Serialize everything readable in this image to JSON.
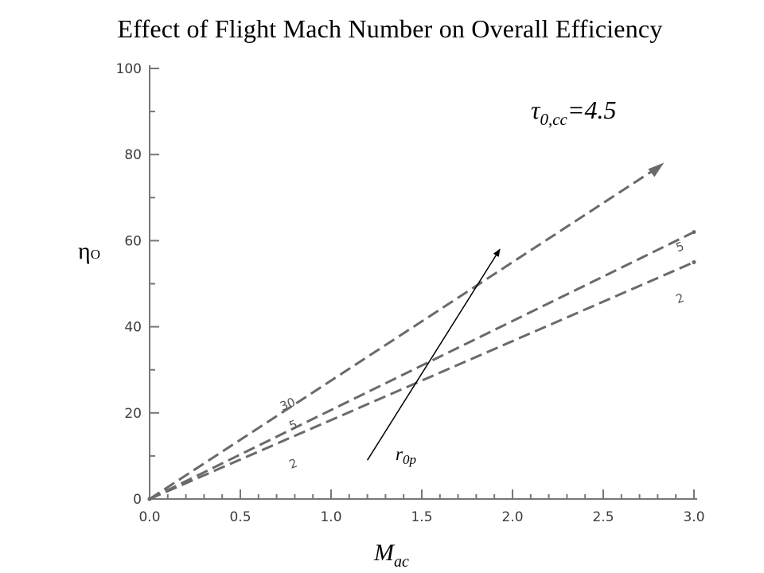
{
  "title": "Effect of Flight Mach Number on Overall Efficiency",
  "chart_data": {
    "type": "line",
    "xlabel": "M",
    "xlabel_sub": "ac",
    "ylabel": "η",
    "ylabel_sub": "O",
    "xlim": [
      0.0,
      3.0
    ],
    "ylim": [
      0,
      100
    ],
    "x_ticks": [
      "0.0",
      "0.5",
      "1.0",
      "1.5",
      "2.0",
      "2.5",
      "3.0"
    ],
    "y_ticks": [
      "0",
      "20",
      "40",
      "60",
      "80",
      "100"
    ],
    "param_label": "τ",
    "param_sub": "0,cc",
    "param_value": "=4.5",
    "arrow_label": "r",
    "arrow_sub": "0p",
    "line_style": "dashed",
    "line_color": "#6a6a6a",
    "series": [
      {
        "name": "30",
        "x": [
          0.0,
          2.8
        ],
        "y": [
          0,
          77
        ],
        "label_pos": "start",
        "label_x": 0.73,
        "label_y": 20.5
      },
      {
        "name": "5",
        "x": [
          0.0,
          3.0
        ],
        "y": [
          0,
          62
        ],
        "label_pos": "both",
        "label_x": 0.78,
        "label_y": 16,
        "end_label_x": 2.95,
        "end_label_y": 58
      },
      {
        "name": "2",
        "x": [
          0.0,
          3.0
        ],
        "y": [
          0,
          55
        ],
        "label_pos": "both",
        "label_x": 0.78,
        "label_y": 7,
        "end_label_x": 2.95,
        "end_label_y": 46
      }
    ],
    "arrow": {
      "from": [
        1.2,
        9
      ],
      "to": [
        1.93,
        58
      ]
    }
  }
}
